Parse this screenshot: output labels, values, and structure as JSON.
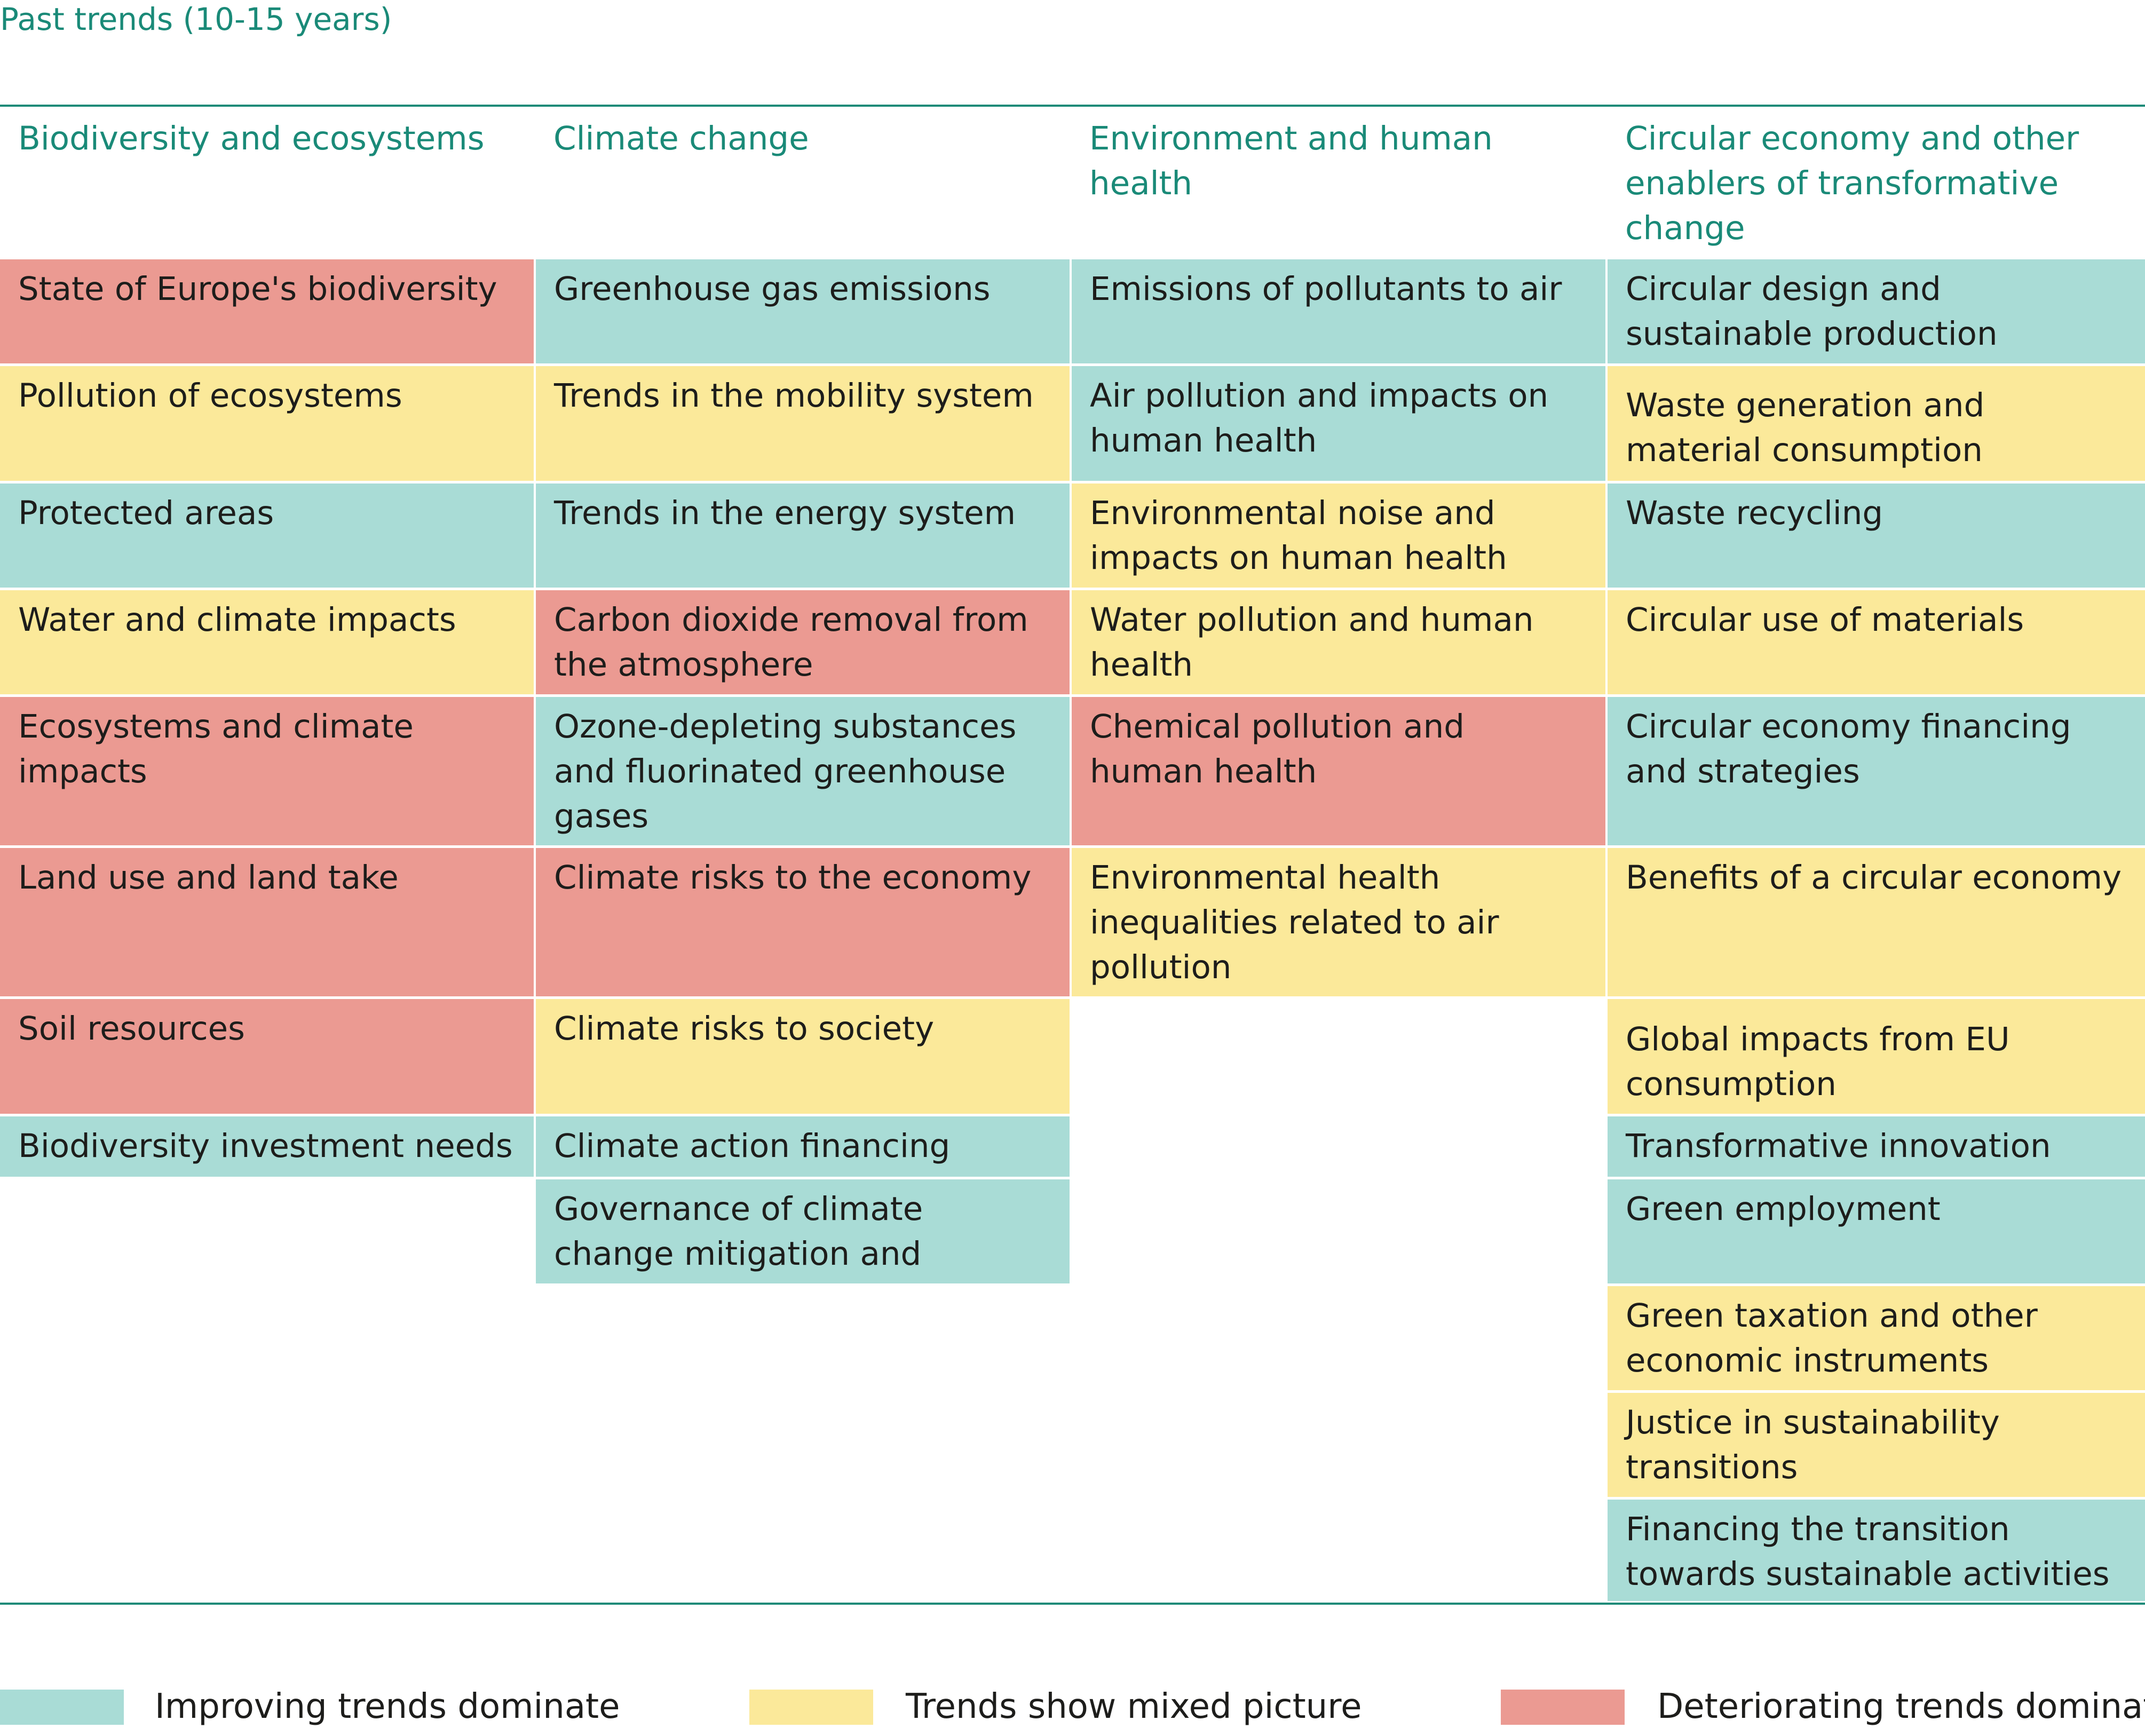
{
  "title": "Past trends (10-15 years)",
  "colors": {
    "accent": "#1a8a78",
    "improving": "#a9dcd6",
    "mixed": "#fbe99a",
    "deteriorating": "#eb9a92"
  },
  "columns": [
    {
      "header": "Biodiversity and ecosystems",
      "items": [
        {
          "label": "State of Europe's biodiversity",
          "status": "deteriorating"
        },
        {
          "label": "Pollution of ecosystems",
          "status": "mixed"
        },
        {
          "label": "Protected areas",
          "status": "improving"
        },
        {
          "label": "Water and climate impacts",
          "status": "mixed"
        },
        {
          "label": "Ecosystems and climate impacts",
          "status": "deteriorating"
        },
        {
          "label": "Land use and land take",
          "status": "deteriorating"
        },
        {
          "label": "Soil resources",
          "status": "deteriorating"
        },
        {
          "label": "Biodiversity investment needs",
          "status": "improving"
        }
      ]
    },
    {
      "header": "Climate change",
      "items": [
        {
          "label": "Greenhouse gas emissions",
          "status": "improving"
        },
        {
          "label": "Trends in the mobility system",
          "status": "mixed"
        },
        {
          "label": "Trends in the energy system",
          "status": "improving"
        },
        {
          "label": "Carbon dioxide removal from the atmosphere",
          "status": "deteriorating"
        },
        {
          "label": "Ozone-depleting substances and fluorinated greenhouse gases",
          "status": "improving"
        },
        {
          "label": "Climate risks to the economy",
          "status": "deteriorating"
        },
        {
          "label": "Climate risks to society",
          "status": "mixed"
        },
        {
          "label": "Climate action financing",
          "status": "improving"
        },
        {
          "label": "Governance of climate change mitigation and adaptation",
          "status": "improving"
        }
      ]
    },
    {
      "header": "Environment and human health",
      "items": [
        {
          "label": "Emissions of pollutants to air",
          "status": "improving"
        },
        {
          "label": "Air pollution and impacts on human health",
          "status": "improving"
        },
        {
          "label": "Environmental noise and impacts on human health",
          "status": "mixed"
        },
        {
          "label": "Water pollution and human health",
          "status": "mixed"
        },
        {
          "label": "Chemical pollution and human health",
          "status": "deteriorating"
        },
        {
          "label": "Environmental health inequalities related to air pollution",
          "status": "mixed"
        }
      ]
    },
    {
      "header": "Circular economy and other enablers of transformative change",
      "items": [
        {
          "label": "Circular design and sustainable production",
          "status": "improving"
        },
        {
          "label": "Waste generation and material consumption",
          "status": "mixed"
        },
        {
          "label": "Waste recycling",
          "status": "improving"
        },
        {
          "label": "Circular use of materials",
          "status": "mixed"
        },
        {
          "label": "Circular economy financing and strategies",
          "status": "improving"
        },
        {
          "label": "Benefits of a circular economy",
          "status": "mixed"
        },
        {
          "label": "Global impacts from EU consumption",
          "status": "mixed"
        },
        {
          "label": "Transformative innovation",
          "status": "improving"
        },
        {
          "label": "Green employment",
          "status": "improving"
        },
        {
          "label": "Green taxation and other economic instruments",
          "status": "mixed"
        },
        {
          "label": "Justice in sustainability transitions",
          "status": "mixed"
        },
        {
          "label": "Financing the transition towards sustainable activities",
          "status": "improving"
        }
      ]
    }
  ],
  "legend": [
    {
      "label": "Improving trends dominate",
      "status": "improving"
    },
    {
      "label": "Trends show mixed picture",
      "status": "mixed"
    },
    {
      "label": "Deteriorating trends dominate",
      "status": "deteriorating"
    }
  ]
}
